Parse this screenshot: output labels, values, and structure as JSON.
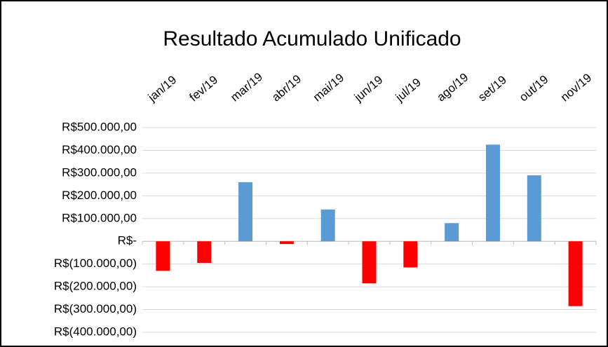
{
  "chart_data": {
    "type": "bar",
    "title": "Resultado Acumulado Unificado",
    "categories": [
      "jan/19",
      "fev/19",
      "mar/19",
      "abr/19",
      "mai/19",
      "jun/19",
      "jul/19",
      "ago/19",
      "set/19",
      "out/19",
      "nov/19"
    ],
    "values": [
      -130000,
      -95000,
      260000,
      -12000,
      140000,
      -185000,
      -115000,
      80000,
      425000,
      290000,
      -285000
    ],
    "colors": [
      "#ff0000",
      "#ff0000",
      "#5b9bd5",
      "#ff0000",
      "#5b9bd5",
      "#ff0000",
      "#ff0000",
      "#5b9bd5",
      "#5b9bd5",
      "#5b9bd5",
      "#ff0000"
    ],
    "ylim": [
      -400000,
      500000
    ],
    "yticks": [
      {
        "value": 500000,
        "label": "R$500.000,00"
      },
      {
        "value": 400000,
        "label": "R$400.000,00"
      },
      {
        "value": 300000,
        "label": "R$300.000,00"
      },
      {
        "value": 200000,
        "label": "R$200.000,00"
      },
      {
        "value": 100000,
        "label": "R$100.000,00"
      },
      {
        "value": 0,
        "label": "R$-"
      },
      {
        "value": -100000,
        "label": "R$(100.000,00)"
      },
      {
        "value": -200000,
        "label": "R$(200.000,00)"
      },
      {
        "value": -300000,
        "label": "R$(300.000,00)"
      },
      {
        "value": -400000,
        "label": "R$(400.000,00)"
      }
    ],
    "grid": true
  }
}
